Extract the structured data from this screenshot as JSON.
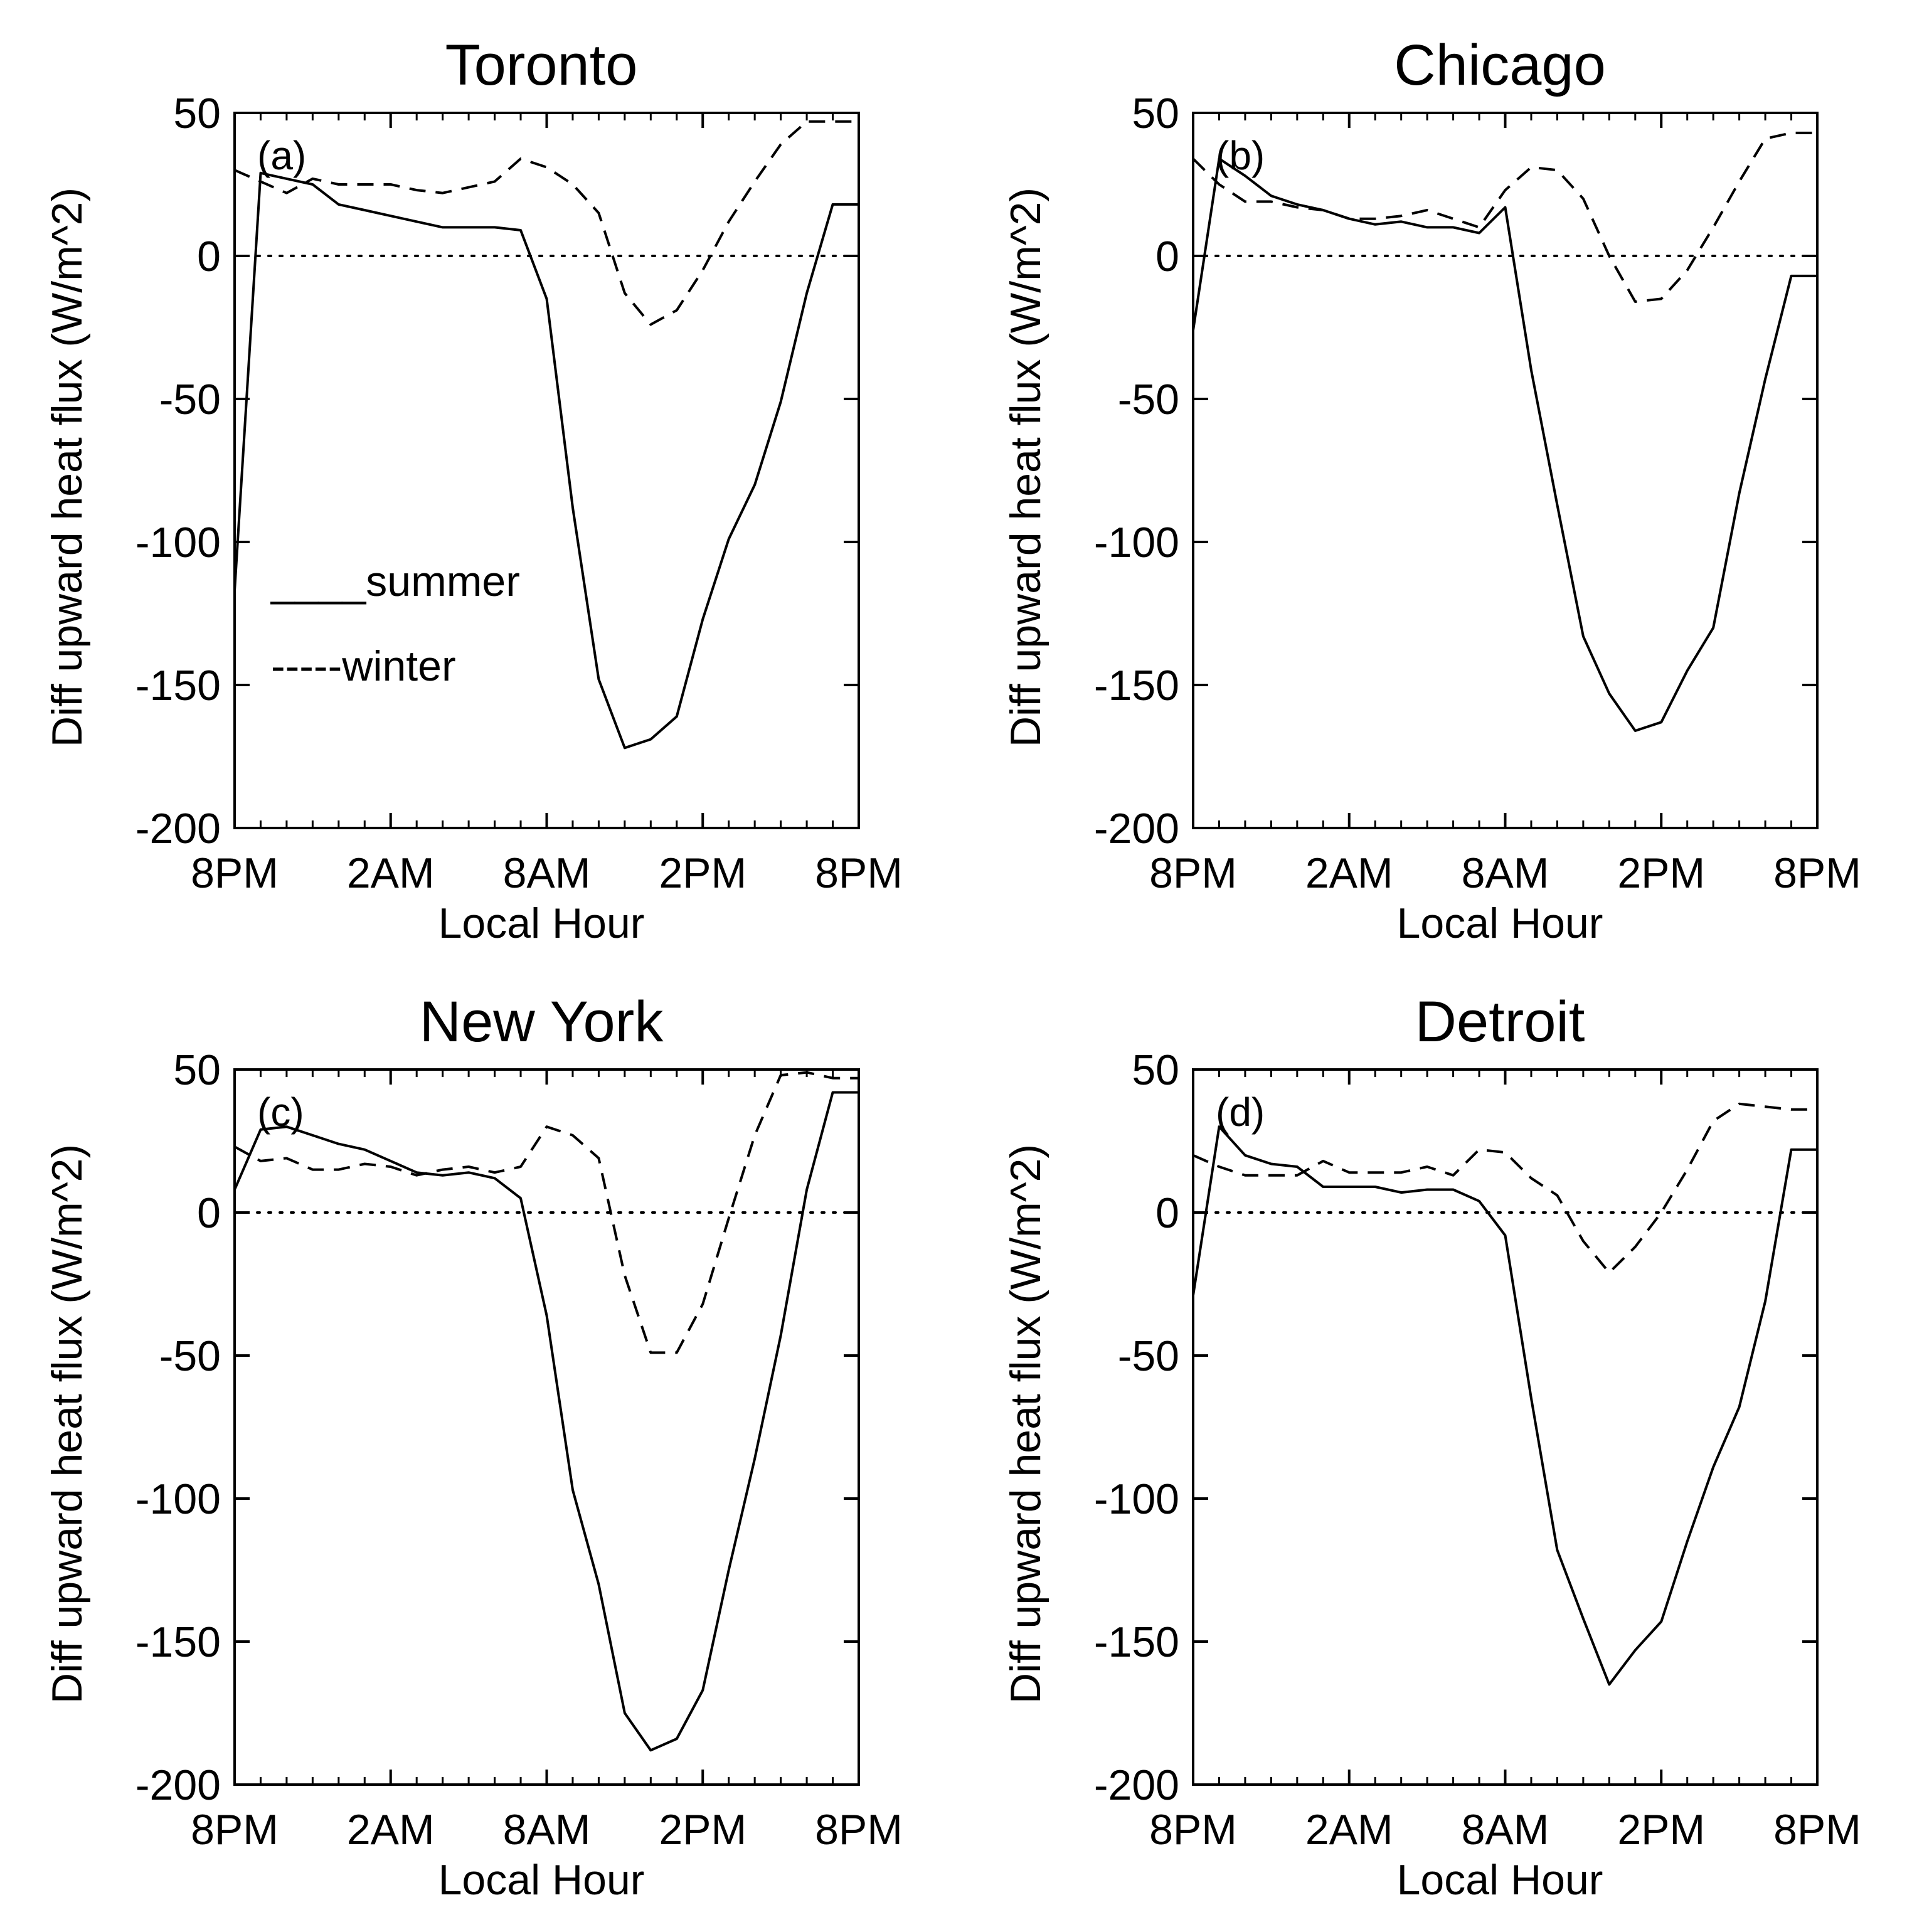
{
  "figure": {
    "legend": {
      "summer_label": "____summer",
      "winter_label": "-----winter",
      "panel": "Toronto"
    }
  },
  "chart_data": [
    {
      "type": "line",
      "panel_label": "(a)",
      "title": "Toronto",
      "xlabel": "Local Hour",
      "ylabel": "Diff upward heat flux (W/m^2)",
      "xlim": [
        0,
        24
      ],
      "ylim": [
        -200,
        50
      ],
      "xticks": [
        0,
        6,
        12,
        18,
        24
      ],
      "xticklabels": [
        "8PM",
        "2AM",
        "8AM",
        "2PM",
        "8PM"
      ],
      "yticks": [
        50,
        0,
        -50,
        -100,
        -150,
        -200
      ],
      "yticklabels": [
        "50",
        "0",
        "-50",
        "-100",
        "-150",
        "-200"
      ],
      "zero_line": true,
      "series": [
        {
          "name": "summer",
          "style": "solid",
          "x": [
            0,
            1,
            2,
            3,
            4,
            5,
            6,
            7,
            8,
            9,
            10,
            11,
            12,
            13,
            14,
            15,
            16,
            17,
            18,
            19,
            20,
            21,
            22,
            23,
            24
          ],
          "values": [
            -117,
            29,
            27,
            25,
            18,
            16,
            14,
            12,
            10,
            10,
            10,
            9,
            -15,
            -88,
            -148,
            -172,
            -169,
            -161,
            -127,
            -99,
            -80,
            -51,
            -13,
            18,
            18
          ]
        },
        {
          "name": "winter",
          "style": "dashed",
          "x": [
            0,
            1,
            2,
            3,
            4,
            5,
            6,
            7,
            8,
            9,
            10,
            11,
            12,
            13,
            14,
            15,
            16,
            17,
            18,
            19,
            20,
            21,
            22,
            23,
            24
          ],
          "values": [
            30,
            26,
            22,
            27,
            25,
            25,
            25,
            23,
            22,
            24,
            26,
            34,
            31,
            25,
            15,
            -13,
            -24,
            -19,
            -5,
            12,
            26,
            39,
            47,
            47,
            47
          ]
        }
      ]
    },
    {
      "type": "line",
      "panel_label": "(b)",
      "title": "Chicago",
      "xlabel": "Local Hour",
      "ylabel": "Diff upward heat flux (W/m^2)",
      "xlim": [
        0,
        24
      ],
      "ylim": [
        -200,
        50
      ],
      "xticks": [
        0,
        6,
        12,
        18,
        24
      ],
      "xticklabels": [
        "8PM",
        "2AM",
        "8AM",
        "2PM",
        "8PM"
      ],
      "yticks": [
        50,
        0,
        -50,
        -100,
        -150,
        -200
      ],
      "yticklabels": [
        "50",
        "0",
        "-50",
        "-100",
        "-150",
        "-200"
      ],
      "zero_line": true,
      "series": [
        {
          "name": "summer",
          "style": "solid",
          "x": [
            0,
            1,
            2,
            3,
            4,
            5,
            6,
            7,
            8,
            9,
            10,
            11,
            12,
            13,
            14,
            15,
            16,
            17,
            18,
            19,
            20,
            21,
            22,
            23,
            24
          ],
          "values": [
            -26,
            34,
            28,
            21,
            18,
            16,
            13,
            11,
            12,
            10,
            10,
            8,
            17,
            -40,
            -87,
            -133,
            -153,
            -166,
            -163,
            -145,
            -130,
            -83,
            -43,
            -7,
            -7
          ]
        },
        {
          "name": "winter",
          "style": "dashed",
          "x": [
            0,
            1,
            2,
            3,
            4,
            5,
            6,
            7,
            8,
            9,
            10,
            11,
            12,
            13,
            14,
            15,
            16,
            17,
            18,
            19,
            20,
            21,
            22,
            23,
            24
          ],
          "values": [
            34,
            25,
            19,
            19,
            17,
            16,
            13,
            13,
            14,
            16,
            13,
            10,
            23,
            31,
            30,
            20,
            0,
            -16,
            -15,
            -5,
            10,
            26,
            41,
            43,
            43
          ]
        }
      ]
    },
    {
      "type": "line",
      "panel_label": "(c)",
      "title": "New York",
      "xlabel": "Local Hour",
      "ylabel": "Diff upward heat flux (W/m^2)",
      "xlim": [
        0,
        24
      ],
      "ylim": [
        -200,
        50
      ],
      "xticks": [
        0,
        6,
        12,
        18,
        24
      ],
      "xticklabels": [
        "8PM",
        "2AM",
        "8AM",
        "2PM",
        "8PM"
      ],
      "yticks": [
        50,
        0,
        -50,
        -100,
        -150,
        -200
      ],
      "yticklabels": [
        "50",
        "0",
        "-50",
        "-100",
        "-150",
        "-200"
      ],
      "zero_line": true,
      "series": [
        {
          "name": "summer",
          "style": "solid",
          "x": [
            0,
            1,
            2,
            3,
            4,
            5,
            6,
            7,
            8,
            9,
            10,
            11,
            12,
            13,
            14,
            15,
            16,
            17,
            18,
            19,
            20,
            21,
            22,
            23,
            24
          ],
          "values": [
            8,
            29,
            30,
            27,
            24,
            22,
            18,
            14,
            13,
            14,
            12,
            5,
            -36,
            -97,
            -130,
            -175,
            -188,
            -184,
            -167,
            -125,
            -86,
            -43,
            8,
            42,
            42
          ]
        },
        {
          "name": "winter",
          "style": "dashed",
          "x": [
            0,
            1,
            2,
            3,
            4,
            5,
            6,
            7,
            8,
            9,
            10,
            11,
            12,
            13,
            14,
            15,
            16,
            17,
            18,
            19,
            20,
            21,
            22,
            23,
            24
          ],
          "values": [
            23,
            18,
            19,
            15,
            15,
            17,
            16,
            13,
            15,
            16,
            14,
            16,
            30,
            27,
            19,
            -22,
            -49,
            -49,
            -32,
            -2,
            27,
            48,
            49,
            47,
            47
          ]
        }
      ]
    },
    {
      "type": "line",
      "panel_label": "(d)",
      "title": "Detroit",
      "xlabel": "Local Hour",
      "ylabel": "Diff upward heat flux (W/m^2)",
      "xlim": [
        0,
        24
      ],
      "ylim": [
        -200,
        50
      ],
      "xticks": [
        0,
        6,
        12,
        18,
        24
      ],
      "xticklabels": [
        "8PM",
        "2AM",
        "8AM",
        "2PM",
        "8PM"
      ],
      "yticks": [
        50,
        0,
        -50,
        -100,
        -150,
        -200
      ],
      "yticklabels": [
        "50",
        "0",
        "-50",
        "-100",
        "-150",
        "-200"
      ],
      "zero_line": true,
      "series": [
        {
          "name": "summer",
          "style": "solid",
          "x": [
            0,
            1,
            2,
            3,
            4,
            5,
            6,
            7,
            8,
            9,
            10,
            11,
            12,
            13,
            14,
            15,
            16,
            17,
            18,
            19,
            20,
            21,
            22,
            23,
            24
          ],
          "values": [
            -29,
            30,
            20,
            17,
            16,
            9,
            9,
            9,
            7,
            8,
            8,
            4,
            -8,
            -65,
            -118,
            -142,
            -165,
            -153,
            -143,
            -115,
            -89,
            -68,
            -31,
            22,
            22
          ]
        },
        {
          "name": "winter",
          "style": "dashed",
          "x": [
            0,
            1,
            2,
            3,
            4,
            5,
            6,
            7,
            8,
            9,
            10,
            11,
            12,
            13,
            14,
            15,
            16,
            17,
            18,
            19,
            20,
            21,
            22,
            23,
            24
          ],
          "values": [
            20,
            16,
            13,
            13,
            13,
            18,
            14,
            14,
            14,
            16,
            13,
            22,
            21,
            12,
            6,
            -10,
            -21,
            -12,
            0,
            15,
            32,
            38,
            37,
            36,
            36
          ]
        }
      ]
    }
  ]
}
